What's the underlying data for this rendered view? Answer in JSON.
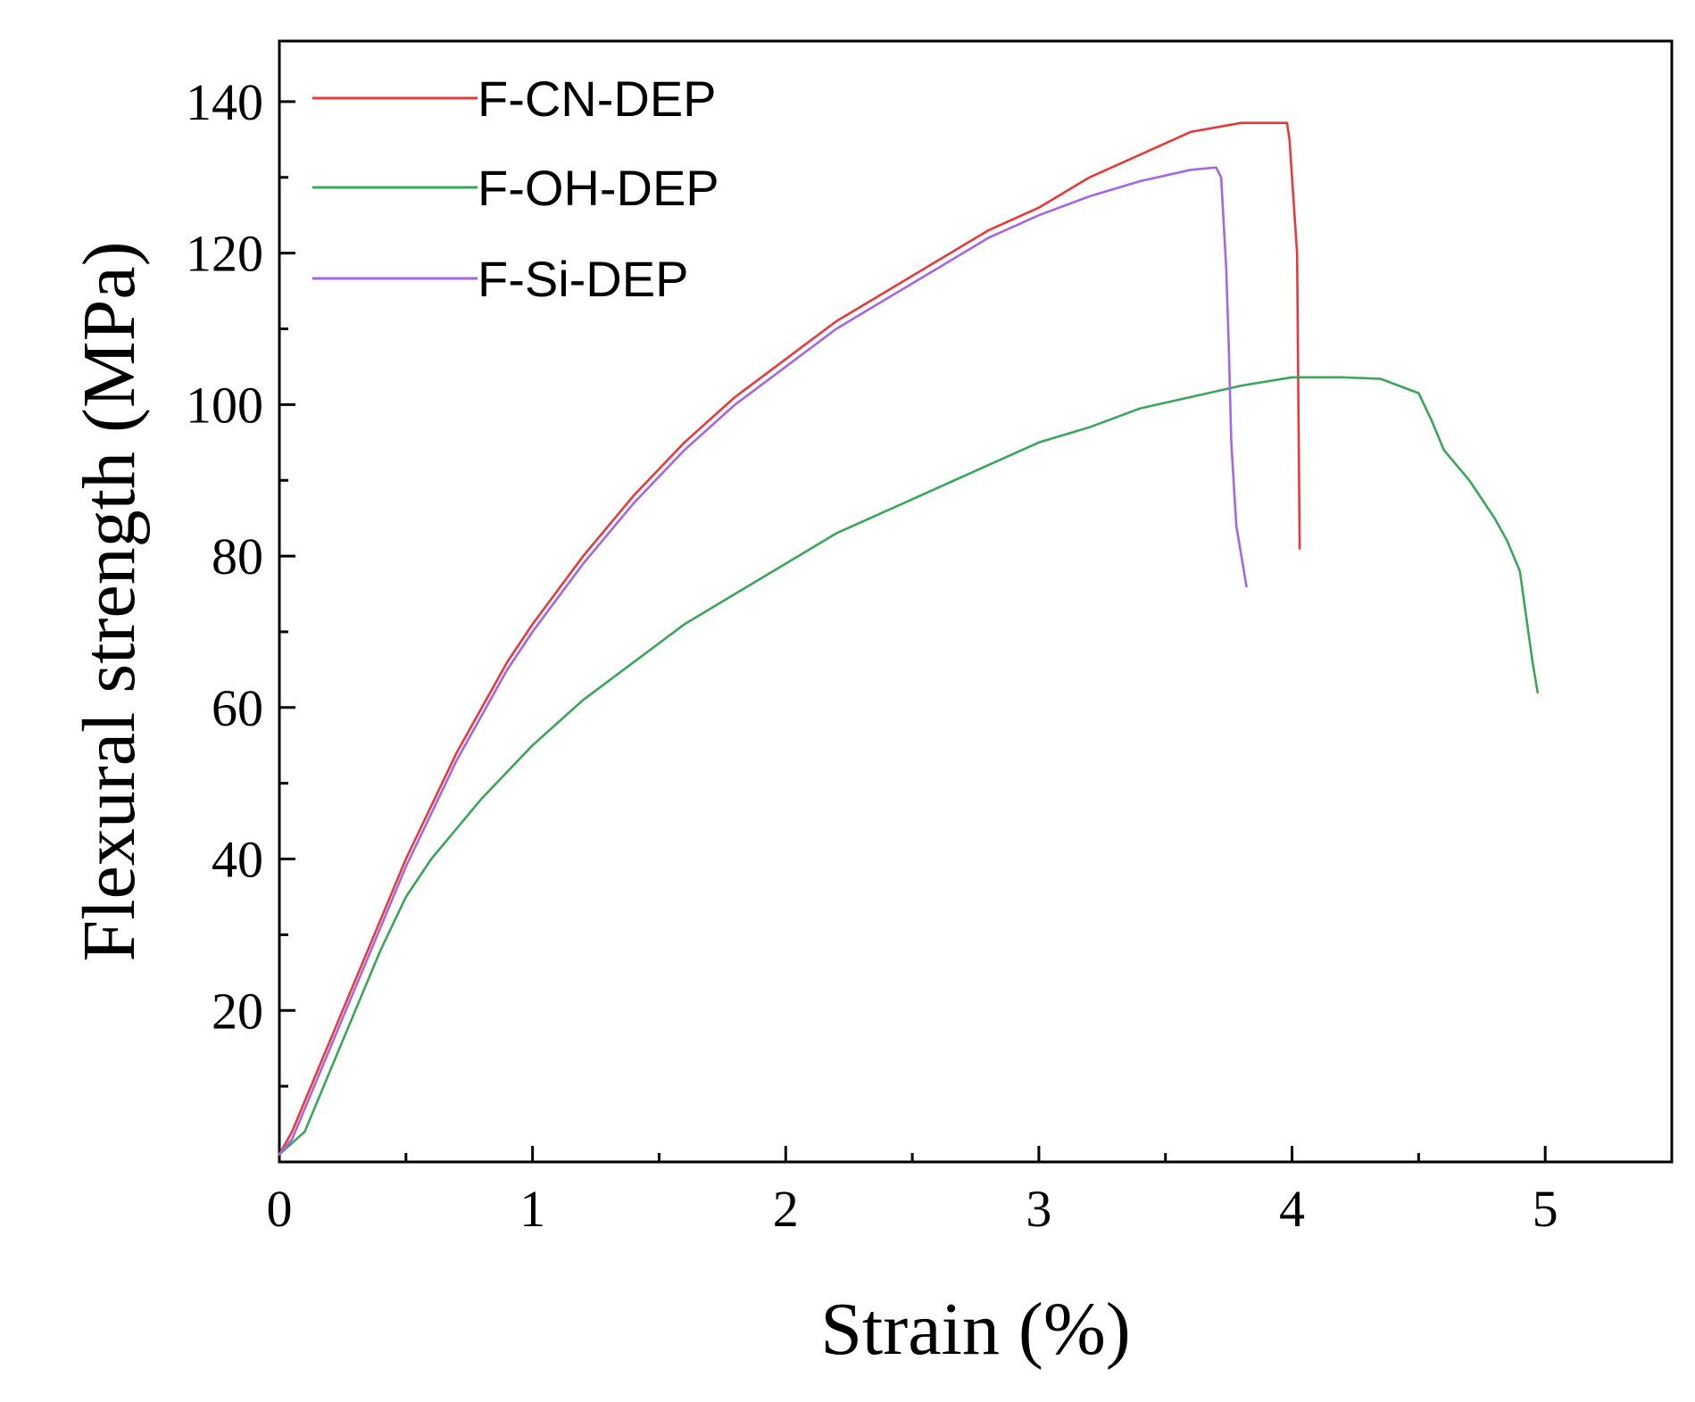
{
  "chart_data": {
    "type": "line",
    "title": "",
    "xlabel": "Strain (%)",
    "ylabel": "Flexural strength (MPa)",
    "xlim": [
      0,
      5.5
    ],
    "ylim": [
      0,
      148
    ],
    "xticks": [
      0,
      1,
      2,
      3,
      4,
      5
    ],
    "yticks": [
      20,
      40,
      60,
      80,
      100,
      120,
      140
    ],
    "grid": false,
    "legend_position": "top-left",
    "series": [
      {
        "name": "F-CN-DEP",
        "color": "#e8393a",
        "x": [
          0,
          0.05,
          0.1,
          0.2,
          0.3,
          0.4,
          0.5,
          0.6,
          0.7,
          0.8,
          0.9,
          1.0,
          1.2,
          1.4,
          1.6,
          1.8,
          2.0,
          2.2,
          2.4,
          2.6,
          2.8,
          3.0,
          3.2,
          3.4,
          3.6,
          3.8,
          3.98,
          3.99,
          4.02,
          4.03
        ],
        "y": [
          1,
          4,
          8,
          16,
          24,
          32,
          40,
          47,
          54,
          60,
          66,
          71,
          80,
          88,
          95,
          101,
          106,
          111,
          115,
          119,
          123,
          126,
          130,
          133,
          136,
          137.2,
          137.2,
          135,
          120,
          81
        ]
      },
      {
        "name": "F-OH-DEP",
        "color": "#3aa55c",
        "x": [
          0,
          0.1,
          0.2,
          0.3,
          0.4,
          0.5,
          0.6,
          0.7,
          0.8,
          1.0,
          1.2,
          1.4,
          1.6,
          1.8,
          2.0,
          2.2,
          2.4,
          2.6,
          2.8,
          3.0,
          3.2,
          3.4,
          3.6,
          3.8,
          4.0,
          4.2,
          4.35,
          4.5,
          4.55,
          4.6,
          4.7,
          4.8,
          4.85,
          4.9,
          4.95,
          4.97
        ],
        "y": [
          1,
          4,
          12,
          20,
          28,
          35,
          40,
          44,
          48,
          55,
          61,
          66,
          71,
          75,
          79,
          83,
          86,
          89,
          92,
          95,
          97,
          99.5,
          101,
          102.5,
          103.6,
          103.6,
          103.4,
          101.5,
          98,
          94,
          90,
          85,
          82,
          78,
          66,
          62
        ]
      },
      {
        "name": "F-Si-DEP",
        "color": "#a566e0",
        "x": [
          0,
          0.05,
          0.1,
          0.2,
          0.3,
          0.4,
          0.5,
          0.6,
          0.7,
          0.8,
          0.9,
          1.0,
          1.2,
          1.4,
          1.6,
          1.8,
          2.0,
          2.2,
          2.4,
          2.6,
          2.8,
          3.0,
          3.2,
          3.4,
          3.6,
          3.7,
          3.72,
          3.74,
          3.75,
          3.76,
          3.78,
          3.82
        ],
        "y": [
          1,
          3,
          7,
          15,
          23,
          31,
          39,
          46,
          53,
          59,
          65,
          70,
          79,
          87,
          94,
          100,
          105,
          110,
          114,
          118,
          122,
          125,
          127.5,
          129.5,
          131,
          131.3,
          130,
          118,
          108,
          95,
          84,
          76
        ]
      }
    ]
  }
}
